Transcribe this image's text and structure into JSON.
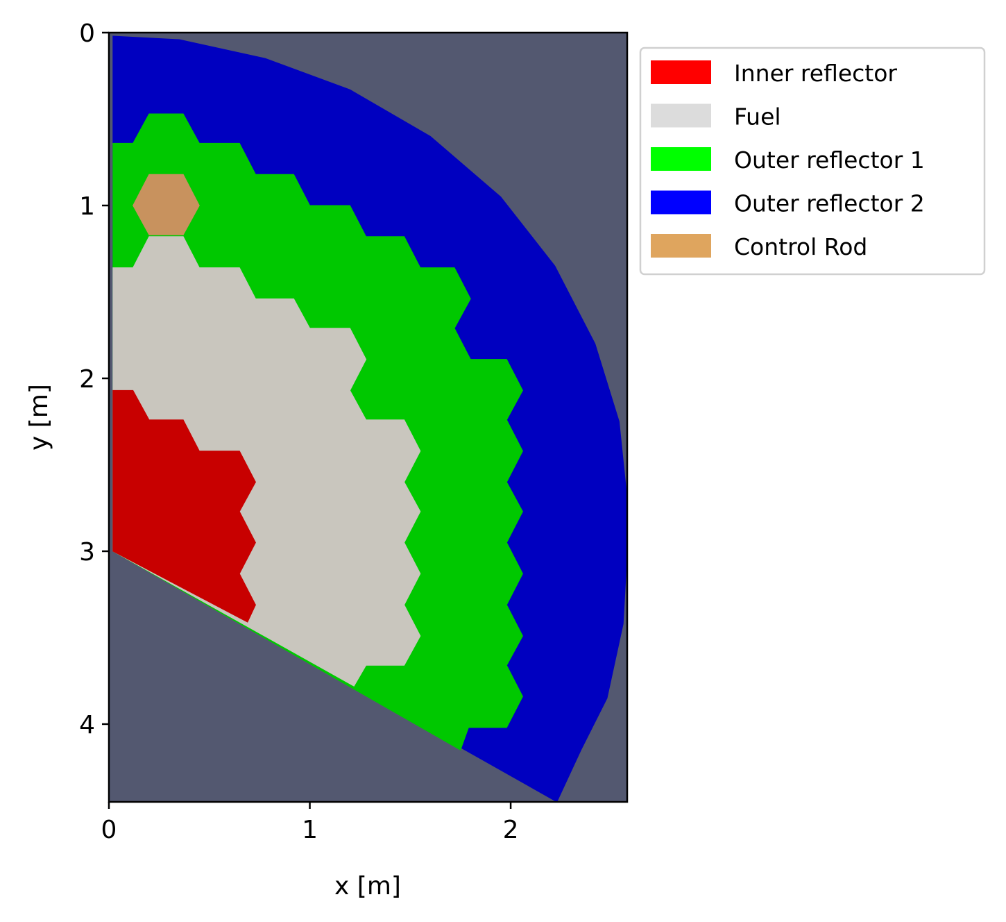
{
  "chart_data": {
    "type": "heatmap",
    "title": "",
    "xlabel": "x [m]",
    "ylabel": "y [m]",
    "xlim": [
      0,
      2.58
    ],
    "ylim": [
      4.45,
      0
    ],
    "y_axis_inverted": true,
    "grid": false,
    "legend_position": "outside upper right",
    "x_ticks": [
      0,
      1,
      2
    ],
    "x_tick_labels": [
      "0",
      "1",
      "2"
    ],
    "y_ticks": [
      0,
      1,
      2,
      3,
      4
    ],
    "y_tick_labels": [
      "0",
      "1",
      "2",
      "3",
      "4"
    ],
    "background_color": "#535870",
    "legend": [
      {
        "name": "Inner reflector",
        "color": "#ff0000"
      },
      {
        "name": "Fuel",
        "color": "#dcdcdc"
      },
      {
        "name": "Outer reflector 1",
        "color": "#00ff00"
      },
      {
        "name": "Outer reflector 2",
        "color": "#0000ff"
      },
      {
        "name": "Control Rod",
        "color": "#dfa55e"
      }
    ],
    "regions": [
      {
        "name": "Outer reflector 2",
        "color": "#0000c0",
        "points": [
          [
            0.02,
            0.02
          ],
          [
            0.35,
            0.04
          ],
          [
            0.78,
            0.15
          ],
          [
            1.2,
            0.33
          ],
          [
            1.6,
            0.6
          ],
          [
            1.95,
            0.95
          ],
          [
            2.22,
            1.35
          ],
          [
            2.42,
            1.8
          ],
          [
            2.54,
            2.25
          ],
          [
            2.58,
            2.7
          ],
          [
            2.58,
            3.0
          ],
          [
            2.56,
            3.42
          ],
          [
            2.48,
            3.85
          ],
          [
            2.35,
            4.15
          ],
          [
            2.23,
            4.45
          ],
          [
            0.02,
            3.0
          ]
        ]
      },
      {
        "name": "Outer reflector 1",
        "color": "#00c800",
        "points": [
          [
            0.02,
            0.64
          ],
          [
            0.12,
            0.64
          ],
          [
            0.2,
            0.47
          ],
          [
            0.37,
            0.47
          ],
          [
            0.45,
            0.64
          ],
          [
            0.65,
            0.64
          ],
          [
            0.73,
            0.82
          ],
          [
            0.92,
            0.82
          ],
          [
            1.0,
            1.0
          ],
          [
            1.2,
            1.0
          ],
          [
            1.28,
            1.18
          ],
          [
            1.47,
            1.18
          ],
          [
            1.55,
            1.36
          ],
          [
            1.72,
            1.36
          ],
          [
            1.8,
            1.54
          ],
          [
            1.72,
            1.71
          ],
          [
            1.8,
            1.89
          ],
          [
            1.98,
            1.89
          ],
          [
            2.06,
            2.07
          ],
          [
            1.98,
            2.24
          ],
          [
            2.06,
            2.42
          ],
          [
            1.98,
            2.6
          ],
          [
            2.06,
            2.77
          ],
          [
            1.98,
            2.95
          ],
          [
            2.06,
            3.13
          ],
          [
            1.98,
            3.31
          ],
          [
            2.06,
            3.49
          ],
          [
            1.98,
            3.66
          ],
          [
            2.06,
            3.84
          ],
          [
            1.98,
            4.02
          ],
          [
            1.79,
            4.02
          ],
          [
            1.75,
            4.15
          ],
          [
            0.02,
            3.0
          ]
        ]
      },
      {
        "name": "Fuel",
        "color": "#c9c6be",
        "points": [
          [
            0.02,
            1.36
          ],
          [
            0.12,
            1.36
          ],
          [
            0.2,
            1.18
          ],
          [
            0.37,
            1.18
          ],
          [
            0.45,
            1.36
          ],
          [
            0.65,
            1.36
          ],
          [
            0.73,
            1.54
          ],
          [
            0.92,
            1.54
          ],
          [
            1.0,
            1.71
          ],
          [
            1.2,
            1.71
          ],
          [
            1.28,
            1.89
          ],
          [
            1.2,
            2.07
          ],
          [
            1.28,
            2.24
          ],
          [
            1.47,
            2.24
          ],
          [
            1.55,
            2.42
          ],
          [
            1.47,
            2.6
          ],
          [
            1.55,
            2.77
          ],
          [
            1.47,
            2.95
          ],
          [
            1.55,
            3.13
          ],
          [
            1.47,
            3.31
          ],
          [
            1.55,
            3.49
          ],
          [
            1.47,
            3.66
          ],
          [
            1.28,
            3.66
          ],
          [
            1.22,
            3.78
          ],
          [
            0.02,
            3.0
          ]
        ]
      },
      {
        "name": "Inner reflector",
        "color": "#c80000",
        "points": [
          [
            0.02,
            2.07
          ],
          [
            0.12,
            2.07
          ],
          [
            0.2,
            2.24
          ],
          [
            0.37,
            2.24
          ],
          [
            0.45,
            2.42
          ],
          [
            0.65,
            2.42
          ],
          [
            0.73,
            2.6
          ],
          [
            0.65,
            2.77
          ],
          [
            0.73,
            2.95
          ],
          [
            0.65,
            3.13
          ],
          [
            0.73,
            3.31
          ],
          [
            0.69,
            3.41
          ],
          [
            0.02,
            3.0
          ]
        ]
      },
      {
        "name": "Control Rod",
        "color": "#c8925e",
        "points": [
          [
            0.12,
            1.0
          ],
          [
            0.2,
            0.82
          ],
          [
            0.37,
            0.82
          ],
          [
            0.45,
            1.0
          ],
          [
            0.37,
            1.17
          ],
          [
            0.2,
            1.17
          ]
        ]
      }
    ]
  }
}
